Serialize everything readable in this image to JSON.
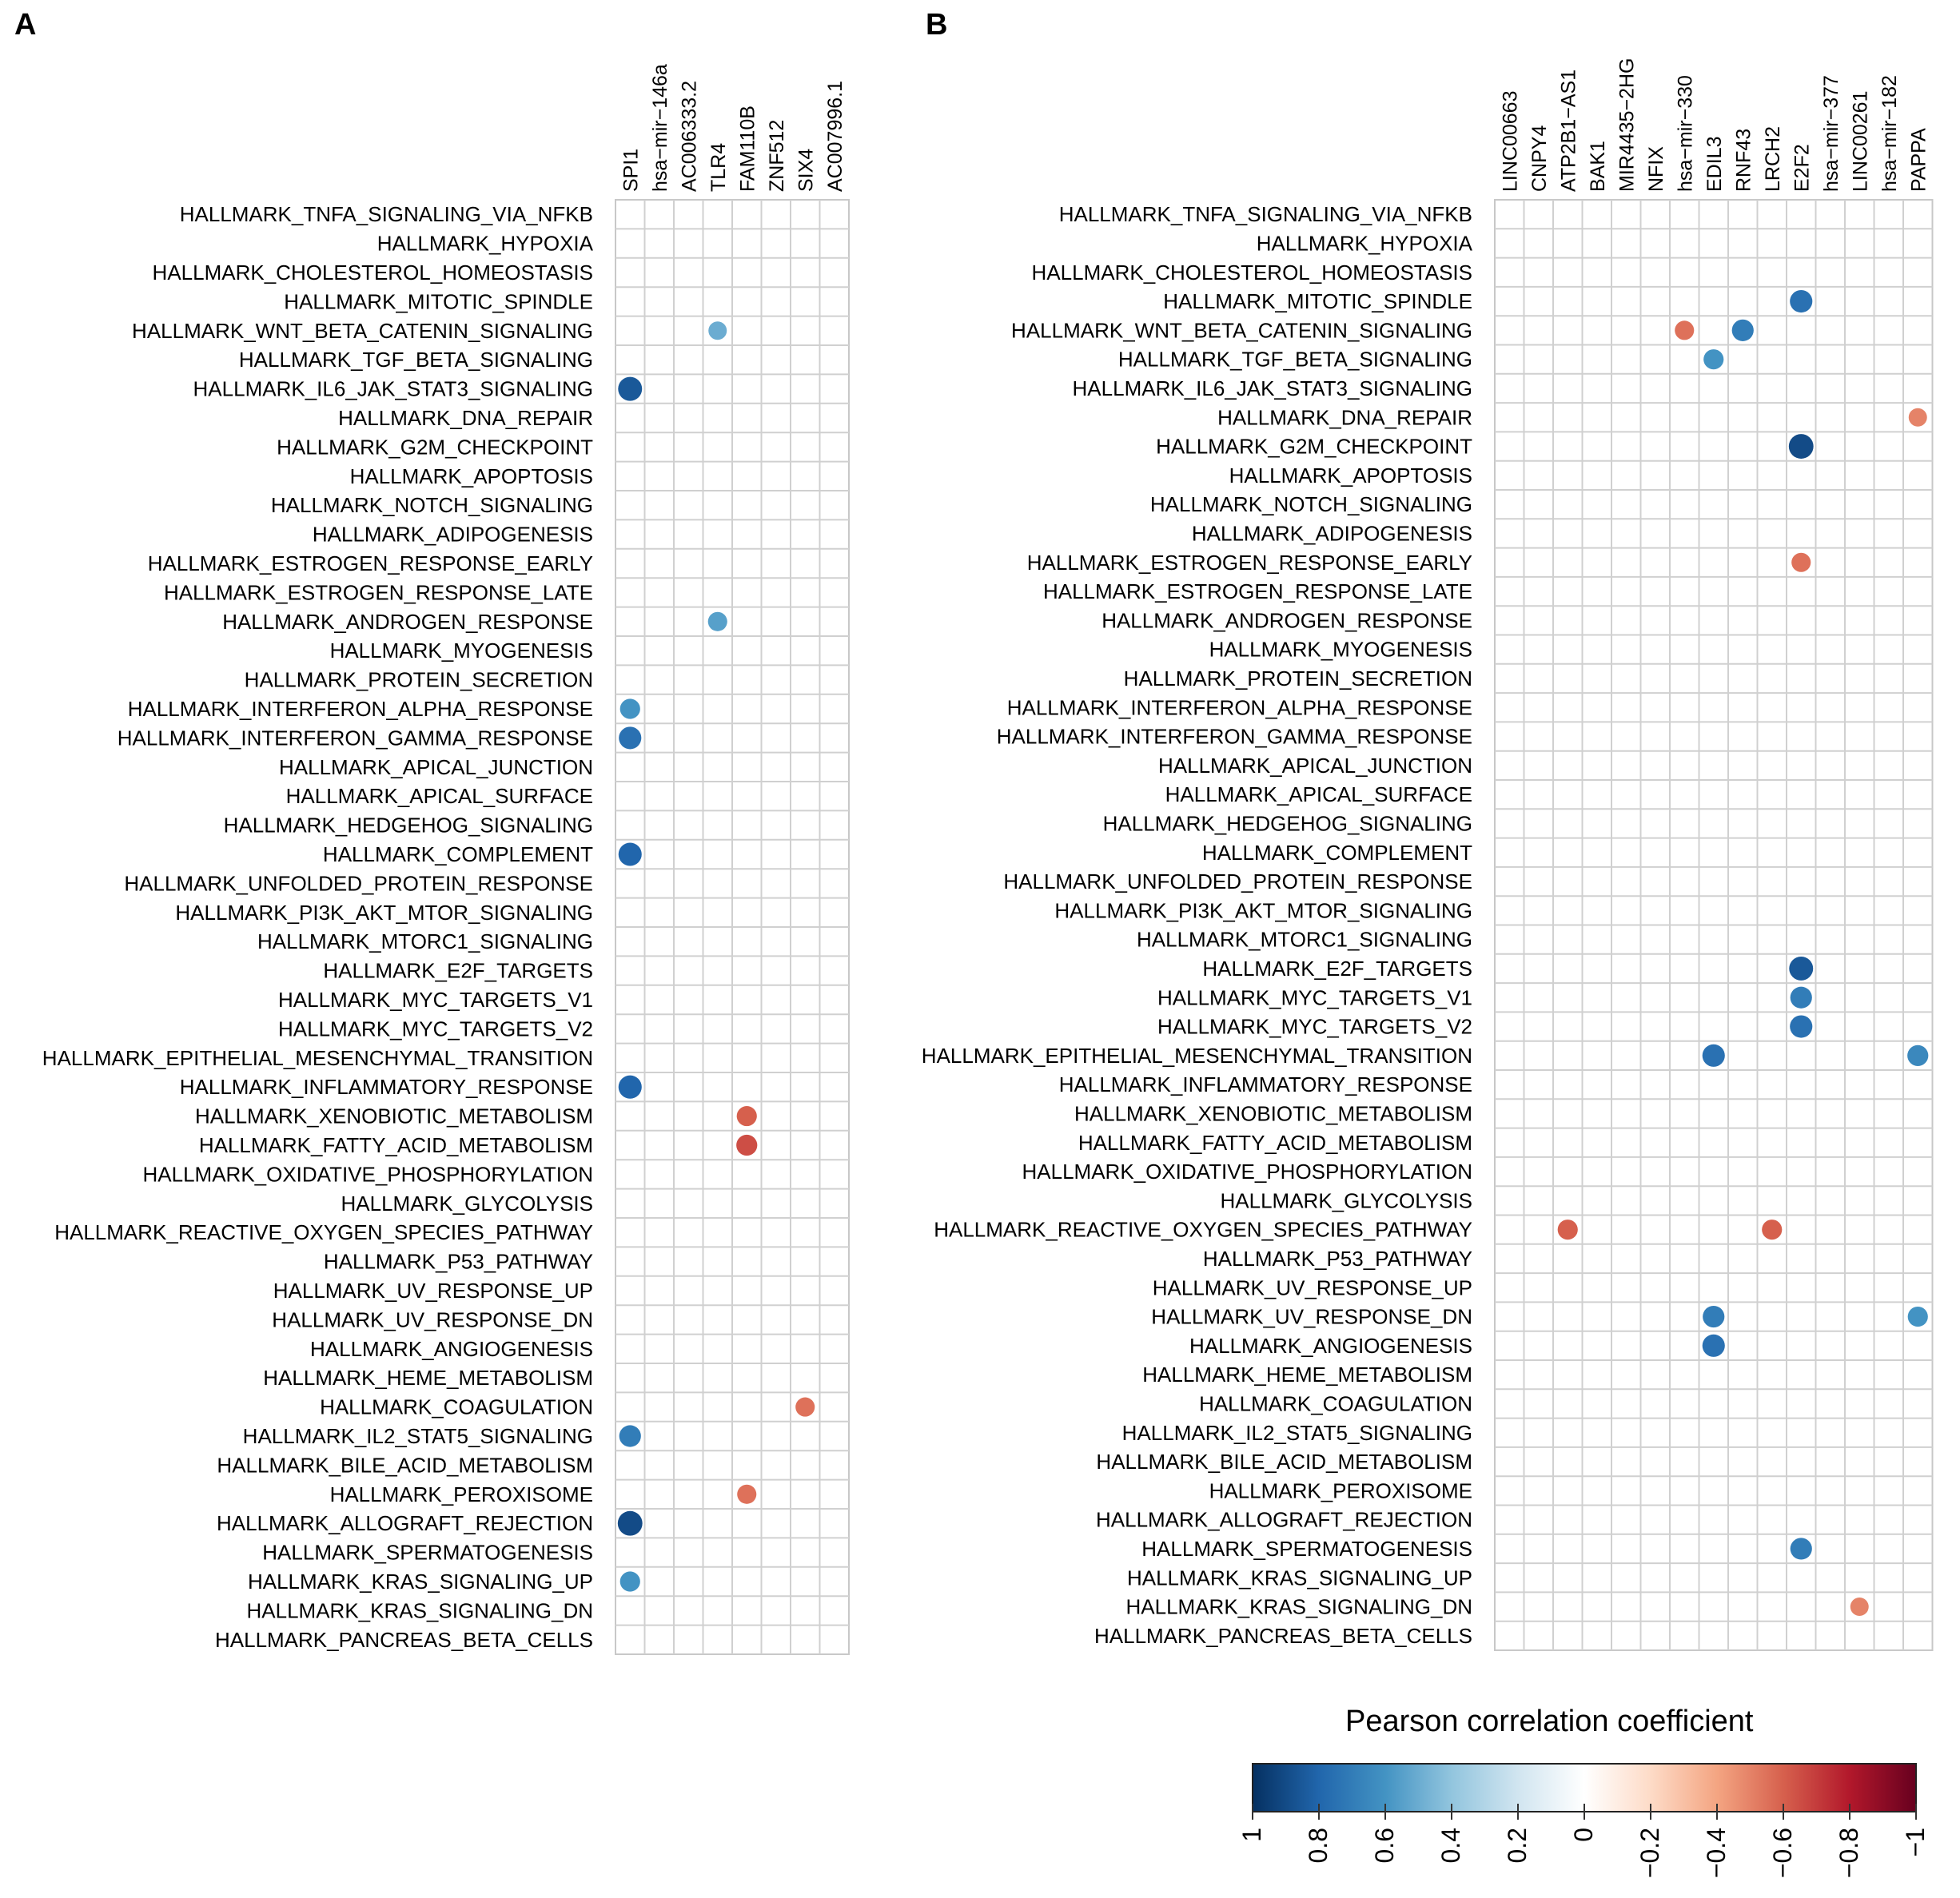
{
  "panels": [
    {
      "letter": "A",
      "columns": [
        "SPI1",
        "hsa−mir−146a",
        "AC006333.2",
        "TLR4",
        "FAM110B",
        "ZNF512",
        "SIX4",
        "AC007996.1"
      ],
      "rows": [
        "HALLMARK_TNFA_SIGNALING_VIA_NFKB",
        "HALLMARK_HYPOXIA",
        "HALLMARK_CHOLESTEROL_HOMEOSTASIS",
        "HALLMARK_MITOTIC_SPINDLE",
        "HALLMARK_WNT_BETA_CATENIN_SIGNALING",
        "HALLMARK_TGF_BETA_SIGNALING",
        "HALLMARK_IL6_JAK_STAT3_SIGNALING",
        "HALLMARK_DNA_REPAIR",
        "HALLMARK_G2M_CHECKPOINT",
        "HALLMARK_APOPTOSIS",
        "HALLMARK_NOTCH_SIGNALING",
        "HALLMARK_ADIPOGENESIS",
        "HALLMARK_ESTROGEN_RESPONSE_EARLY",
        "HALLMARK_ESTROGEN_RESPONSE_LATE",
        "HALLMARK_ANDROGEN_RESPONSE",
        "HALLMARK_MYOGENESIS",
        "HALLMARK_PROTEIN_SECRETION",
        "HALLMARK_INTERFERON_ALPHA_RESPONSE",
        "HALLMARK_INTERFERON_GAMMA_RESPONSE",
        "HALLMARK_APICAL_JUNCTION",
        "HALLMARK_APICAL_SURFACE",
        "HALLMARK_HEDGEHOG_SIGNALING",
        "HALLMARK_COMPLEMENT",
        "HALLMARK_UNFOLDED_PROTEIN_RESPONSE",
        "HALLMARK_PI3K_AKT_MTOR_SIGNALING",
        "HALLMARK_MTORC1_SIGNALING",
        "HALLMARK_E2F_TARGETS",
        "HALLMARK_MYC_TARGETS_V1",
        "HALLMARK_MYC_TARGETS_V2",
        "HALLMARK_EPITHELIAL_MESENCHYMAL_TRANSITION",
        "HALLMARK_INFLAMMATORY_RESPONSE",
        "HALLMARK_XENOBIOTIC_METABOLISM",
        "HALLMARK_FATTY_ACID_METABOLISM",
        "HALLMARK_OXIDATIVE_PHOSPHORYLATION",
        "HALLMARK_GLYCOLYSIS",
        "HALLMARK_REACTIVE_OXYGEN_SPECIES_PATHWAY",
        "HALLMARK_P53_PATHWAY",
        "HALLMARK_UV_RESPONSE_UP",
        "HALLMARK_UV_RESPONSE_DN",
        "HALLMARK_ANGIOGENESIS",
        "HALLMARK_HEME_METABOLISM",
        "HALLMARK_COAGULATION",
        "HALLMARK_IL2_STAT5_SIGNALING",
        "HALLMARK_BILE_ACID_METABOLISM",
        "HALLMARK_PEROXISOME",
        "HALLMARK_ALLOGRAFT_REJECTION",
        "HALLMARK_SPERMATOGENESIS",
        "HALLMARK_KRAS_SIGNALING_UP",
        "HALLMARK_KRAS_SIGNALING_DN",
        "HALLMARK_PANCREAS_BETA_CELLS"
      ]
    },
    {
      "letter": "B",
      "columns": [
        "LINC00663",
        "CNPY4",
        "ATP2B1−AS1",
        "BAK1",
        "MIR4435−2HG",
        "NFIX",
        "hsa−mir−330",
        "EDIL3",
        "RNF43",
        "LRCH2",
        "E2F2",
        "hsa−mir−377",
        "LINC00261",
        "hsa−mir−182",
        "PAPPA"
      ],
      "rows": [
        "HALLMARK_TNFA_SIGNALING_VIA_NFKB",
        "HALLMARK_HYPOXIA",
        "HALLMARK_CHOLESTEROL_HOMEOSTASIS",
        "HALLMARK_MITOTIC_SPINDLE",
        "HALLMARK_WNT_BETA_CATENIN_SIGNALING",
        "HALLMARK_TGF_BETA_SIGNALING",
        "HALLMARK_IL6_JAK_STAT3_SIGNALING",
        "HALLMARK_DNA_REPAIR",
        "HALLMARK_G2M_CHECKPOINT",
        "HALLMARK_APOPTOSIS",
        "HALLMARK_NOTCH_SIGNALING",
        "HALLMARK_ADIPOGENESIS",
        "HALLMARK_ESTROGEN_RESPONSE_EARLY",
        "HALLMARK_ESTROGEN_RESPONSE_LATE",
        "HALLMARK_ANDROGEN_RESPONSE",
        "HALLMARK_MYOGENESIS",
        "HALLMARK_PROTEIN_SECRETION",
        "HALLMARK_INTERFERON_ALPHA_RESPONSE",
        "HALLMARK_INTERFERON_GAMMA_RESPONSE",
        "HALLMARK_APICAL_JUNCTION",
        "HALLMARK_APICAL_SURFACE",
        "HALLMARK_HEDGEHOG_SIGNALING",
        "HALLMARK_COMPLEMENT",
        "HALLMARK_UNFOLDED_PROTEIN_RESPONSE",
        "HALLMARK_PI3K_AKT_MTOR_SIGNALING",
        "HALLMARK_MTORC1_SIGNALING",
        "HALLMARK_E2F_TARGETS",
        "HALLMARK_MYC_TARGETS_V1",
        "HALLMARK_MYC_TARGETS_V2",
        "HALLMARK_EPITHELIAL_MESENCHYMAL_TRANSITION",
        "HALLMARK_INFLAMMATORY_RESPONSE",
        "HALLMARK_XENOBIOTIC_METABOLISM",
        "HALLMARK_FATTY_ACID_METABOLISM",
        "HALLMARK_OXIDATIVE_PHOSPHORYLATION",
        "HALLMARK_GLYCOLYSIS",
        "HALLMARK_REACTIVE_OXYGEN_SPECIES_PATHWAY",
        "HALLMARK_P53_PATHWAY",
        "HALLMARK_UV_RESPONSE_UP",
        "HALLMARK_UV_RESPONSE_DN",
        "HALLMARK_ANGIOGENESIS",
        "HALLMARK_HEME_METABOLISM",
        "HALLMARK_COAGULATION",
        "HALLMARK_IL2_STAT5_SIGNALING",
        "HALLMARK_BILE_ACID_METABOLISM",
        "HALLMARK_PEROXISOME",
        "HALLMARK_ALLOGRAFT_REJECTION",
        "HALLMARK_SPERMATOGENESIS",
        "HALLMARK_KRAS_SIGNALING_UP",
        "HALLMARK_KRAS_SIGNALING_DN",
        "HALLMARK_PANCREAS_BETA_CELLS"
      ]
    }
  ],
  "legend": {
    "title": "Pearson correlation coefficient",
    "ticks": [
      "1",
      "0.8",
      "0.6",
      "0.4",
      "0.2",
      "0",
      "−0.2",
      "−0.4",
      "−0.6",
      "−0.8",
      "−1"
    ]
  },
  "chart_data": [
    {
      "type": "heatmap",
      "title": "A",
      "xlabel": "",
      "ylabel": "",
      "value_range": [
        -1,
        1
      ],
      "note": "circle size and color encode Pearson r; only the strongest correlations are listed",
      "points": [
        {
          "row": "HALLMARK_IL6_JAK_STAT3_SIGNALING",
          "col": "SPI1",
          "value": 0.85
        },
        {
          "row": "HALLMARK_INTERFERON_GAMMA_RESPONSE",
          "col": "SPI1",
          "value": 0.75
        },
        {
          "row": "HALLMARK_INTERFERON_ALPHA_RESPONSE",
          "col": "SPI1",
          "value": 0.6
        },
        {
          "row": "HALLMARK_COMPLEMENT",
          "col": "SPI1",
          "value": 0.8
        },
        {
          "row": "HALLMARK_INFLAMMATORY_RESPONSE",
          "col": "SPI1",
          "value": 0.8
        },
        {
          "row": "HALLMARK_ALLOGRAFT_REJECTION",
          "col": "SPI1",
          "value": 0.9
        },
        {
          "row": "HALLMARK_IL2_STAT5_SIGNALING",
          "col": "SPI1",
          "value": 0.7
        },
        {
          "row": "HALLMARK_KRAS_SIGNALING_UP",
          "col": "SPI1",
          "value": 0.6
        },
        {
          "row": "HALLMARK_WNT_BETA_CATENIN_SIGNALING",
          "col": "TLR4",
          "value": 0.5
        },
        {
          "row": "HALLMARK_ANDROGEN_RESPONSE",
          "col": "TLR4",
          "value": 0.55
        },
        {
          "row": "HALLMARK_XENOBIOTIC_METABOLISM",
          "col": "FAM110B",
          "value": -0.6
        },
        {
          "row": "HALLMARK_FATTY_ACID_METABOLISM",
          "col": "FAM110B",
          "value": -0.65
        },
        {
          "row": "HALLMARK_PEROXISOME",
          "col": "FAM110B",
          "value": -0.55
        },
        {
          "row": "HALLMARK_COAGULATION",
          "col": "SIX4",
          "value": -0.55
        }
      ]
    },
    {
      "type": "heatmap",
      "title": "B",
      "xlabel": "",
      "ylabel": "",
      "value_range": [
        -1,
        1
      ],
      "note": "circle size and color encode Pearson r; only the strongest correlations are listed",
      "points": [
        {
          "row": "HALLMARK_G2M_CHECKPOINT",
          "col": "E2F2",
          "value": 0.9
        },
        {
          "row": "HALLMARK_E2F_TARGETS",
          "col": "E2F2",
          "value": 0.85
        },
        {
          "row": "HALLMARK_MYC_TARGETS_V1",
          "col": "E2F2",
          "value": 0.7
        },
        {
          "row": "HALLMARK_MYC_TARGETS_V2",
          "col": "E2F2",
          "value": 0.75
        },
        {
          "row": "HALLMARK_MITOTIC_SPINDLE",
          "col": "E2F2",
          "value": 0.75
        },
        {
          "row": "HALLMARK_SPERMATOGENESIS",
          "col": "E2F2",
          "value": 0.7
        },
        {
          "row": "HALLMARK_WNT_BETA_CATENIN_SIGNALING",
          "col": "RNF43",
          "value": 0.7
        },
        {
          "row": "HALLMARK_EPITHELIAL_MESENCHYMAL_TRANSITION",
          "col": "EDIL3",
          "value": 0.75
        },
        {
          "row": "HALLMARK_UV_RESPONSE_DN",
          "col": "EDIL3",
          "value": 0.7
        },
        {
          "row": "HALLMARK_ANGIOGENESIS",
          "col": "EDIL3",
          "value": 0.75
        },
        {
          "row": "HALLMARK_TGF_BETA_SIGNALING",
          "col": "EDIL3",
          "value": 0.6
        },
        {
          "row": "HALLMARK_EPITHELIAL_MESENCHYMAL_TRANSITION",
          "col": "PAPPA",
          "value": 0.65
        },
        {
          "row": "HALLMARK_UV_RESPONSE_DN",
          "col": "PAPPA",
          "value": 0.6
        },
        {
          "row": "HALLMARK_REACTIVE_OXYGEN_SPECIES_PATHWAY",
          "col": "ATP2B1−AS1",
          "value": -0.6
        },
        {
          "row": "HALLMARK_REACTIVE_OXYGEN_SPECIES_PATHWAY",
          "col": "LRCH2",
          "value": -0.6
        },
        {
          "row": "HALLMARK_WNT_BETA_CATENIN_SIGNALING",
          "col": "hsa−mir−330",
          "value": -0.55
        },
        {
          "row": "HALLMARK_ESTROGEN_RESPONSE_EARLY",
          "col": "E2F2",
          "value": -0.55
        },
        {
          "row": "HALLMARK_DNA_REPAIR",
          "col": "PAPPA",
          "value": -0.5
        },
        {
          "row": "HALLMARK_KRAS_SIGNALING_DN",
          "col": "LINC00261",
          "value": -0.5
        }
      ]
    }
  ]
}
